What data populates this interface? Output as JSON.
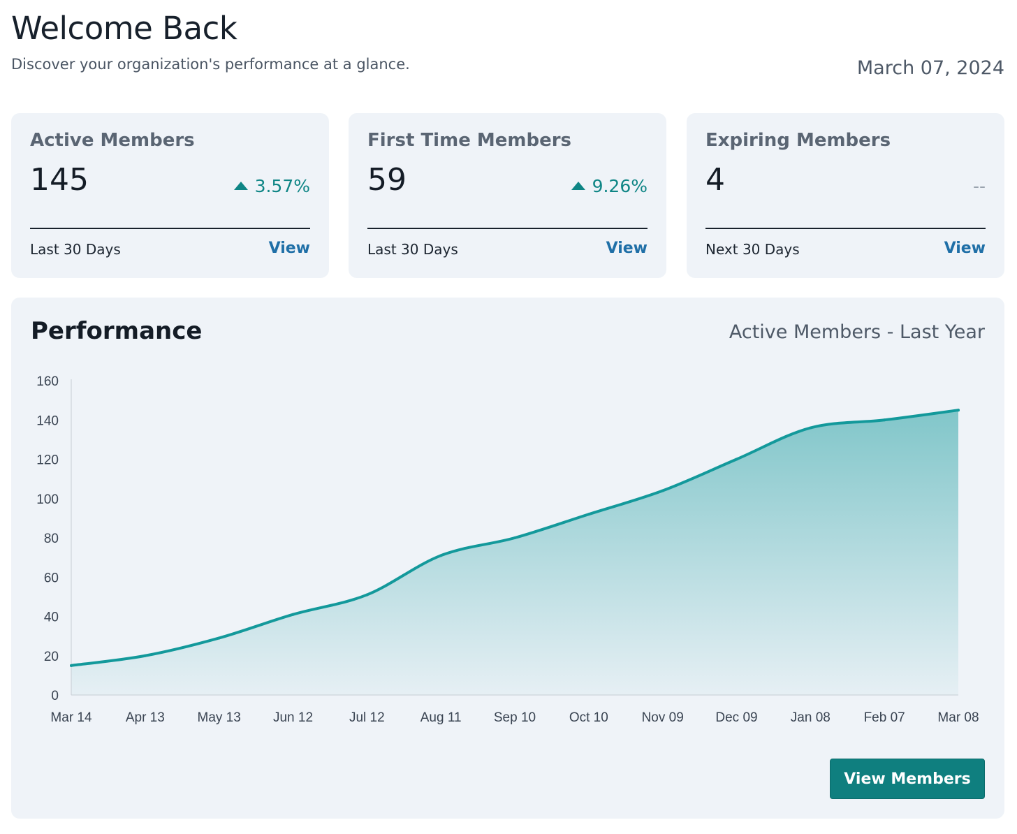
{
  "header": {
    "title": "Welcome Back",
    "subtitle": "Discover your organization's performance at a glance.",
    "date": "March 07, 2024"
  },
  "cards": [
    {
      "title": "Active Members",
      "value": "145",
      "change": "3.57%",
      "trend": "up",
      "period": "Last 30 Days",
      "link": "View"
    },
    {
      "title": "First Time Members",
      "value": "59",
      "change": "9.26%",
      "trend": "up",
      "period": "Last 30 Days",
      "link": "View"
    },
    {
      "title": "Expiring Members",
      "value": "4",
      "change": "--",
      "trend": "none",
      "period": "Next 30 Days",
      "link": "View"
    }
  ],
  "performance": {
    "title": "Performance",
    "subtitle": "Active Members - Last Year",
    "button": "View Members"
  },
  "colors": {
    "accent": "#0e8585",
    "link": "#1f6fa7",
    "card_bg": "#eff3f8",
    "line": "#13999b",
    "button": "#0f7f7f"
  },
  "chart_data": {
    "type": "area",
    "title": "",
    "xlabel": "",
    "ylabel": "",
    "ylim": [
      0,
      160
    ],
    "yticks": [
      0,
      20,
      40,
      60,
      80,
      100,
      120,
      140,
      160
    ],
    "categories": [
      "Mar 14",
      "Apr 13",
      "May 13",
      "Jun 12",
      "Jul 12",
      "Aug 11",
      "Sep 10",
      "Oct 10",
      "Nov 09",
      "Dec 09",
      "Jan 08",
      "Feb 07",
      "Mar 08"
    ],
    "values": [
      15,
      20,
      29,
      41,
      51,
      71,
      80,
      92,
      104,
      120,
      136,
      140,
      145
    ],
    "grid": false,
    "legend": "none"
  }
}
